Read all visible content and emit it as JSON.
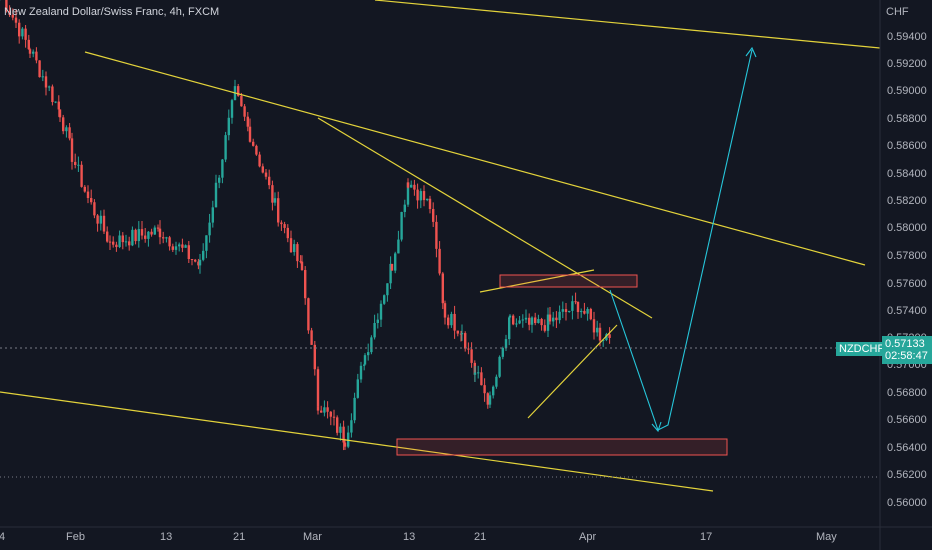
{
  "header": {
    "title": "New Zealand Dollar/Swiss Franc, 4h, FXCM"
  },
  "price_axis": {
    "currency": "CHF",
    "ticks": [
      "0.59400",
      "0.59200",
      "0.59000",
      "0.58800",
      "0.58600",
      "0.58400",
      "0.58200",
      "0.58000",
      "0.57800",
      "0.57600",
      "0.57400",
      "0.57200",
      "0.57000",
      "0.56800",
      "0.56600",
      "0.56400",
      "0.56200",
      "0.56000"
    ]
  },
  "time_axis": {
    "ticks": [
      "4",
      "Feb",
      "13",
      "21",
      "Mar",
      "13",
      "21",
      "Apr",
      "17",
      "May"
    ]
  },
  "symbol_badge": {
    "symbol": "NZDCHF",
    "price": "0.57133",
    "countdown": "02:58:47"
  },
  "colors": {
    "background": "#131722",
    "up": "#26a69a",
    "down": "#ef5350",
    "trendline": "#e3d33b",
    "zone": "#ef5350",
    "arrow": "#26c6da",
    "text": "#b2b5be"
  },
  "chart_data": {
    "type": "candlestick",
    "title": "New Zealand Dollar/Swiss Franc, 4h, FXCM",
    "ylim": [
      0.5592,
      0.5962
    ],
    "x_ticks": [
      "4",
      "Feb",
      "13",
      "21",
      "Mar",
      "13",
      "21",
      "Apr",
      "17",
      "May"
    ],
    "last_price": 0.57133,
    "path_points": [
      [
        0.595,
        0.5955
      ],
      [
        0.5895,
        0.593
      ],
      [
        0.585,
        0.589
      ],
      [
        0.582,
        0.586
      ],
      [
        0.578,
        0.584
      ],
      [
        0.575,
        0.581
      ],
      [
        0.5768,
        0.5808
      ],
      [
        0.5748,
        0.578
      ],
      [
        0.5885,
        0.588
      ],
      [
        0.584,
        0.587
      ],
      [
        0.579,
        0.582
      ],
      [
        0.574,
        0.578
      ],
      [
        0.566,
        0.568
      ],
      [
        0.564,
        0.565
      ],
      [
        0.57,
        0.5705
      ],
      [
        0.576,
        0.577
      ],
      [
        0.582,
        0.5825
      ],
      [
        0.58,
        0.581
      ],
      [
        0.572,
        0.574
      ],
      [
        0.57,
        0.574
      ],
      [
        0.568,
        0.57
      ],
      [
        0.5665,
        0.5675
      ],
      [
        0.57,
        0.575
      ],
      [
        0.5705,
        0.574
      ],
      [
        0.5715,
        0.5735
      ],
      [
        0.5725,
        0.575
      ],
      [
        0.5713,
        0.572
      ]
    ]
  }
}
